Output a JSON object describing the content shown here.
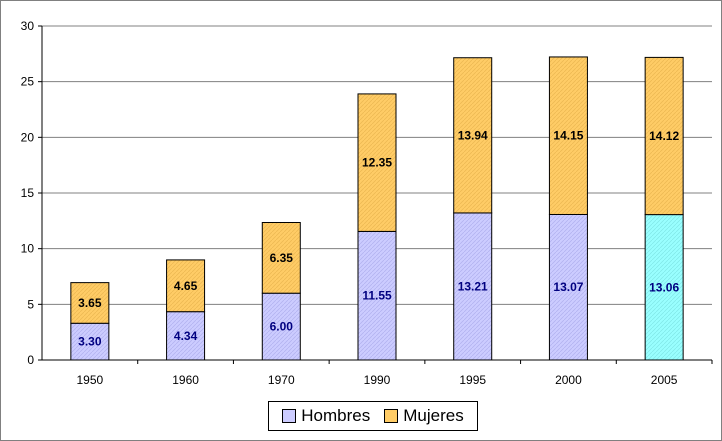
{
  "chart_data": {
    "type": "bar",
    "stacked": true,
    "categories": [
      "1950",
      "1960",
      "1970",
      "1990",
      "1995",
      "2000",
      "2005"
    ],
    "series": [
      {
        "name": "Hombres",
        "values": [
          3.3,
          4.34,
          6.0,
          11.55,
          13.21,
          13.07,
          13.06
        ],
        "labels": [
          "3.30",
          "4.34",
          "6.00",
          "11.55",
          "13.21",
          "13.07",
          "13.06"
        ],
        "color": "#ccccff",
        "highlight_last_color": "#99ffff"
      },
      {
        "name": "Mujeres",
        "values": [
          3.65,
          4.65,
          6.35,
          12.35,
          13.94,
          14.15,
          14.12
        ],
        "labels": [
          "3.65",
          "4.65",
          "6.35",
          "12.35",
          "13.94",
          "14.15",
          "14.12"
        ],
        "color": "#ffcc66"
      }
    ],
    "ylim": [
      0,
      30
    ],
    "yticks": [
      "0",
      "5",
      "10",
      "15",
      "20",
      "25",
      "30"
    ],
    "grid": true,
    "legend": "bottom",
    "colors": {
      "axis": "#000000",
      "grid": "#808080",
      "hombres_label": "#000080",
      "mujeres_label": "#000000"
    }
  }
}
